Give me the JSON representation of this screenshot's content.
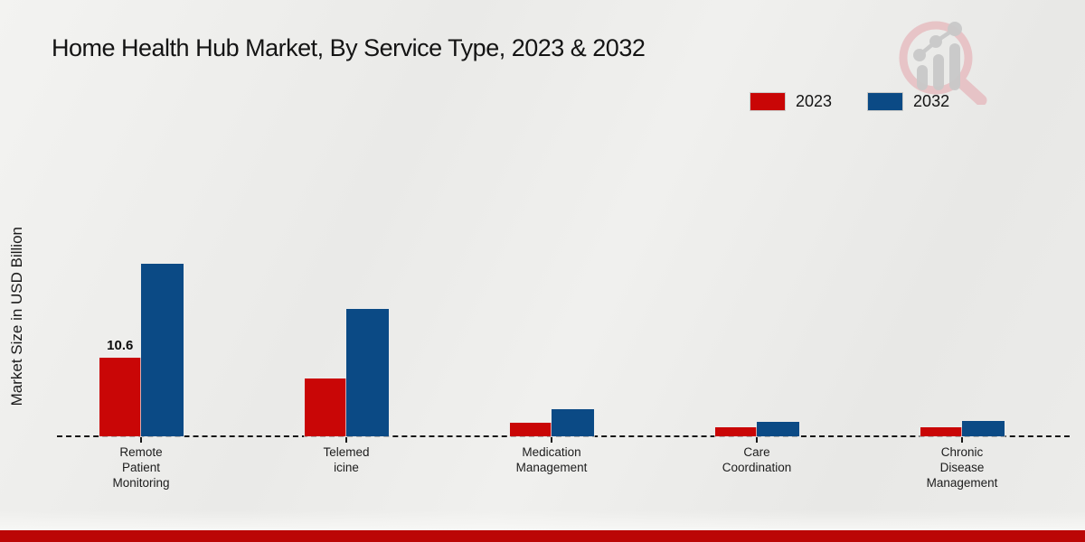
{
  "title": "Home Health Hub Market, By Service Type, 2023 & 2032",
  "ylabel": "Market Size in USD Billion",
  "chart_data": {
    "type": "bar",
    "title": "Home Health Hub Market, By Service Type, 2023 & 2032",
    "ylabel": "Market Size in USD Billion",
    "units": "USD Billion",
    "categories": [
      "Remote Patient Monitoring",
      "Telemedicine",
      "Medication Management",
      "Care Coordination",
      "Chronic Disease Management"
    ],
    "category_label_lines": [
      [
        "Remote",
        "Patient",
        "Monitoring"
      ],
      [
        "Telemed",
        "icine"
      ],
      [
        "Medication",
        "Management"
      ],
      [
        "Care",
        "Coordination"
      ],
      [
        "Chronic",
        "Disease",
        "Management"
      ]
    ],
    "series": [
      {
        "name": "2023",
        "color": "#c90606",
        "values": [
          10.6,
          7.8,
          1.8,
          1.2,
          1.2
        ]
      },
      {
        "name": "2032",
        "color": "#0b4a85",
        "values": [
          23.2,
          17.1,
          3.6,
          2.0,
          2.1
        ]
      }
    ],
    "annotations": [
      {
        "series_index": 0,
        "category_index": 0,
        "text": "10.6"
      }
    ],
    "axis": {
      "baseline_value": 0,
      "x_line_style": "dashed-black",
      "gridlines": false,
      "y_tick_labels_visible": false
    },
    "legend_position": "top-right"
  },
  "legend": [
    {
      "label": "2023",
      "color": "#c90606"
    },
    {
      "label": "2032",
      "color": "#0b4a85"
    }
  ],
  "branding": {
    "logo_icon": "magnifier-bar-chart-watermark",
    "logo_ring_color": "#e6b7bb",
    "logo_bars_color": "#c9c9c9",
    "bottom_bar_color": "#bb0606"
  }
}
